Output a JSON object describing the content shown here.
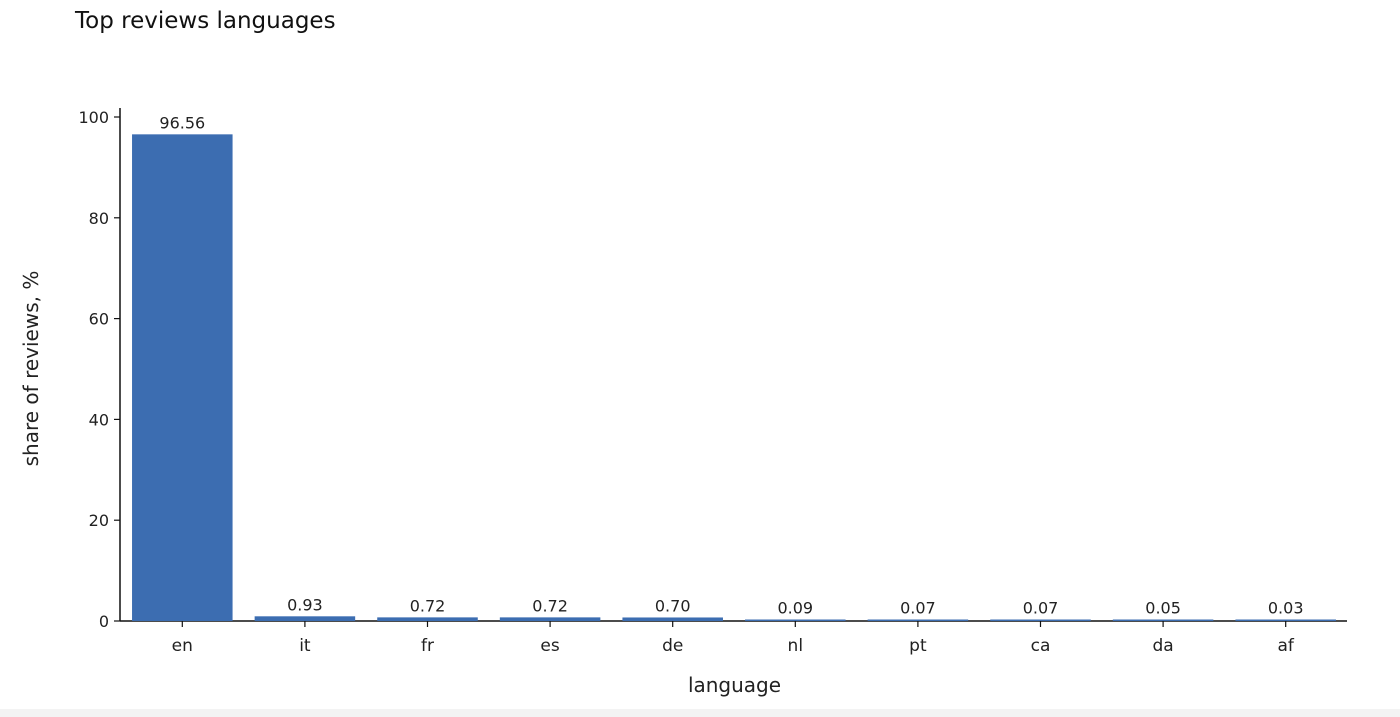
{
  "chart_data": {
    "type": "bar",
    "title": "Top reviews languages",
    "xlabel": "language",
    "ylabel": "share of reviews, %",
    "categories": [
      "en",
      "it",
      "fr",
      "es",
      "de",
      "nl",
      "pt",
      "ca",
      "da",
      "af"
    ],
    "values": [
      96.56,
      0.93,
      0.72,
      0.72,
      0.7,
      0.09,
      0.07,
      0.07,
      0.05,
      0.03
    ],
    "data_labels": [
      "96.56",
      "0.93",
      "0.72",
      "0.72",
      "0.70",
      "0.09",
      "0.07",
      "0.07",
      "0.05",
      "0.03"
    ],
    "ylim": [
      0,
      100
    ],
    "yticks": [
      0,
      20,
      40,
      60,
      80,
      100
    ],
    "grid": false,
    "legend": "none",
    "bar_color": "#3c6db1"
  }
}
